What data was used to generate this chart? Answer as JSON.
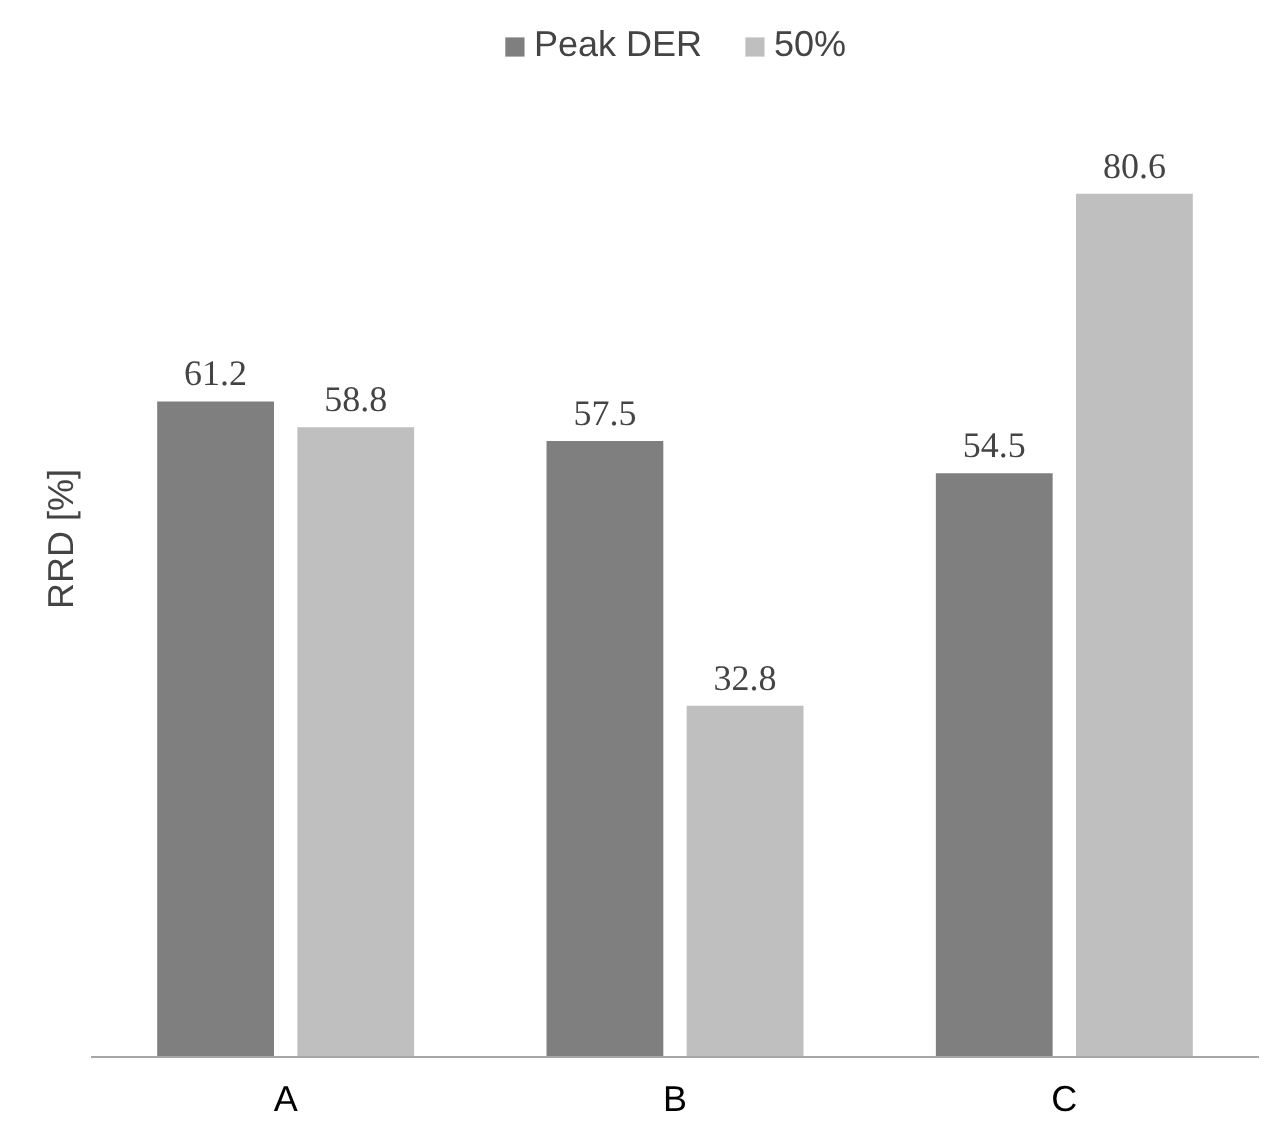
{
  "chart_data": {
    "type": "bar",
    "ylabel": "RRD [%]",
    "categories": [
      "A",
      "B",
      "C"
    ],
    "series": [
      {
        "name": "Peak DER",
        "color": "#7f7f7f",
        "values": [
          61.2,
          57.5,
          54.5
        ]
      },
      {
        "name": "50%",
        "color": "#bfbfbf",
        "values": [
          58.8,
          32.8,
          80.6
        ]
      }
    ],
    "data_labels": true,
    "legend": "top",
    "grid": false
  }
}
